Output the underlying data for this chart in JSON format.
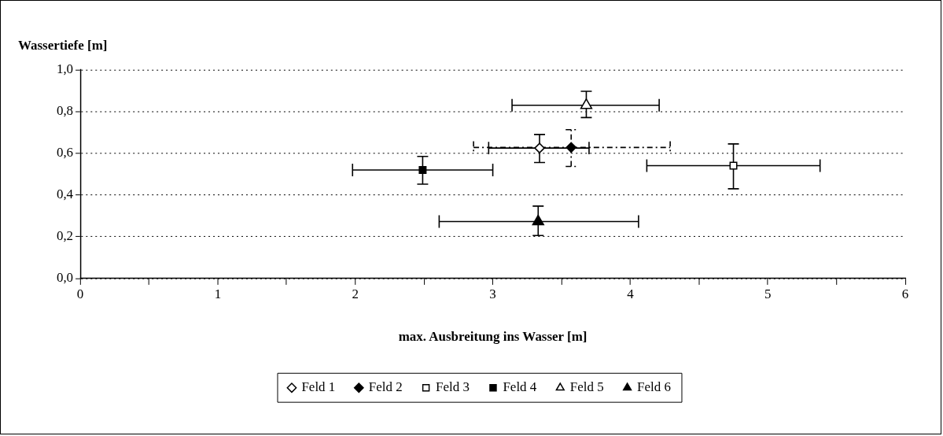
{
  "chart_data": {
    "type": "scatter",
    "xlabel": "max. Ausbreitung ins Wasser [m]",
    "ylabel": "Wassertiefe [m]",
    "xlim": [
      0,
      6
    ],
    "xticks": [
      0,
      {
        "value": 0.5,
        "label": null
      },
      1,
      {
        "value": 1.5,
        "label": null
      },
      2,
      {
        "value": 2.5,
        "label": null
      },
      3,
      {
        "value": 3.5,
        "label": null
      },
      4,
      {
        "value": 4.5,
        "label": null
      },
      5,
      {
        "value": 5.5,
        "label": null
      },
      6
    ],
    "ylim": [
      0,
      1
    ],
    "yticks": [
      {
        "value": 0,
        "label": "0,0"
      },
      {
        "value": 0.2,
        "label": "0,2"
      },
      {
        "value": 0.4,
        "label": "0,4"
      },
      {
        "value": 0.6,
        "label": "0,6"
      },
      {
        "value": 0.8,
        "label": "0,8"
      },
      {
        "value": 1,
        "label": "1,0"
      }
    ],
    "grid": "y",
    "legend": "bottom",
    "series": [
      {
        "name": "Feld 1",
        "color": "#000000",
        "marker": "diamond",
        "colors": [
          "#ffffff"
        ],
        "x": [
          3.34
        ],
        "values": [
          0.625
        ],
        "errors": [
          [
            0.556,
            0.69
          ]
        ],
        "xerrors": [
          [
            2.97,
            3.7
          ]
        ]
      },
      {
        "name": "Feld 2",
        "color": "#000000",
        "marker": "diamond",
        "x": [
          3.57
        ],
        "values": [
          0.628
        ],
        "errors": [
          [
            0.537,
            0.713
          ]
        ],
        "xerrors": [
          [
            2.86,
            4.29
          ]
        ],
        "line_style": "dashed"
      },
      {
        "name": "Feld 3",
        "color": "#000000",
        "marker": "square",
        "colors": [
          "#ffffff"
        ],
        "x": [
          4.75
        ],
        "values": [
          0.541
        ],
        "errors": [
          [
            0.43,
            0.645
          ]
        ],
        "xerrors": [
          [
            4.12,
            5.38
          ]
        ]
      },
      {
        "name": "Feld 4",
        "color": "#000000",
        "marker": "square",
        "x": [
          2.49
        ],
        "values": [
          0.52
        ],
        "errors": [
          [
            0.452,
            0.585
          ]
        ],
        "xerrors": [
          [
            1.98,
            3.0
          ]
        ]
      },
      {
        "name": "Feld 5",
        "color": "#000000",
        "marker": "triangle",
        "colors": [
          "#ffffff"
        ],
        "x": [
          3.68
        ],
        "values": [
          0.83
        ],
        "errors": [
          [
            0.771,
            0.897
          ]
        ],
        "xerrors": [
          [
            3.14,
            4.21
          ]
        ]
      },
      {
        "name": "Feld 6",
        "color": "#000000",
        "marker": "triangle",
        "x": [
          3.33
        ],
        "values": [
          0.273
        ],
        "errors": [
          [
            0.206,
            0.347
          ]
        ],
        "xerrors": [
          [
            2.61,
            4.06
          ]
        ]
      }
    ]
  }
}
